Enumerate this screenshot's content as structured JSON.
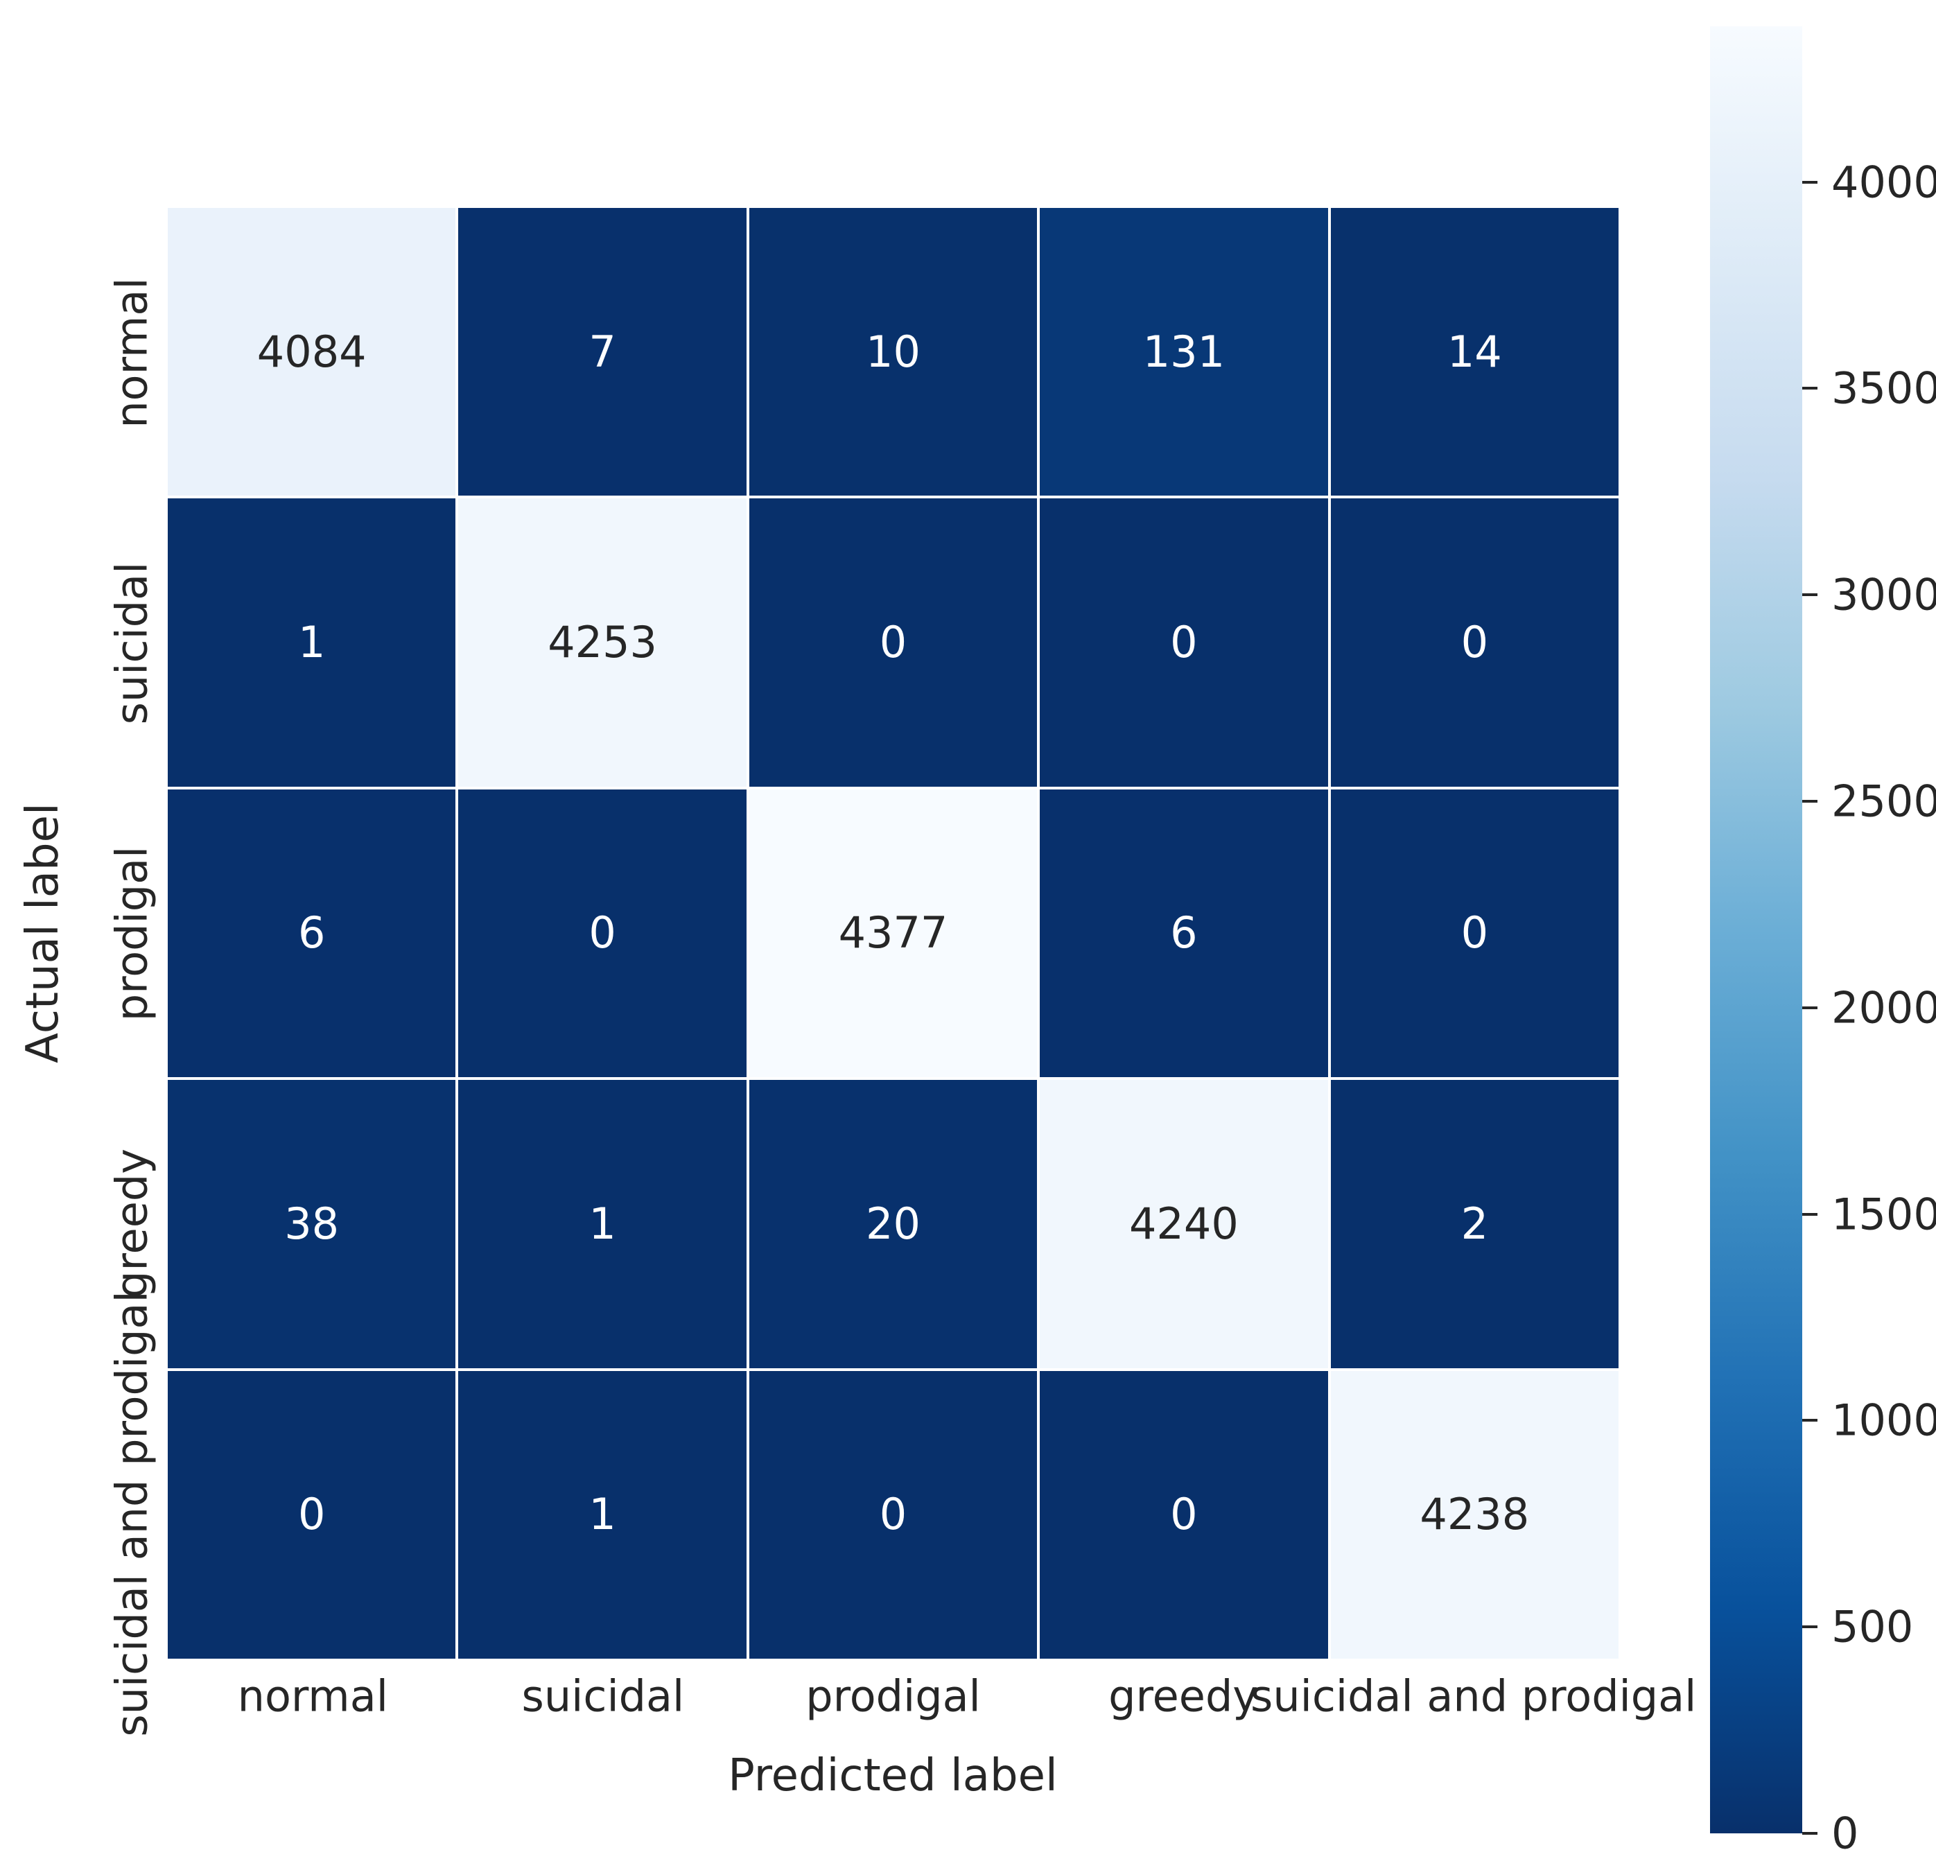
{
  "chart_data": {
    "type": "heatmap",
    "title": "",
    "xlabel": "Predicted label",
    "ylabel": "Actual label",
    "categories": [
      "normal",
      "suicidal",
      "prodigal",
      "greedy",
      "suicidal and prodigal"
    ],
    "matrix": [
      [
        4084,
        7,
        10,
        131,
        14
      ],
      [
        1,
        4253,
        0,
        0,
        0
      ],
      [
        6,
        0,
        4377,
        6,
        0
      ],
      [
        38,
        1,
        20,
        4240,
        2
      ],
      [
        0,
        1,
        0,
        0,
        4238
      ]
    ],
    "vmin": 0,
    "vmax": 4377,
    "grid": "white cell separators",
    "legend_position": "colorbar-right",
    "colorbar": {
      "ticks": [
        0,
        500,
        1000,
        1500,
        2000,
        2500,
        3000,
        3500,
        4000
      ]
    },
    "colormap": {
      "name": "Blues_r",
      "stops_low_to_high": [
        "#08306b",
        "#08519c",
        "#2171b5",
        "#4292c6",
        "#6baed6",
        "#9ecae1",
        "#c6dbef",
        "#deebf7",
        "#f7fbff"
      ]
    },
    "annotation_colors": {
      "on_dark_cell": "#ffffff",
      "on_light_cell": "#262626"
    },
    "background_color": "#ffffff"
  }
}
